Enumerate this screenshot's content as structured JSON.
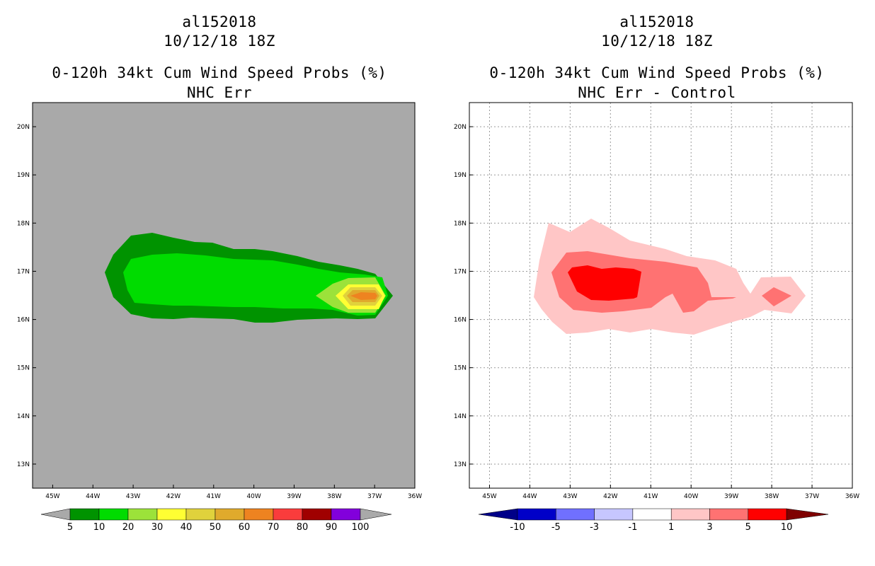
{
  "panels": [
    {
      "title_line1": "al152018",
      "title_line2": "10/12/18 18Z",
      "title_line3": "0-120h 34kt Cum Wind Speed Probs (%)",
      "title_line4": "NHC Err",
      "background": "#a9a9a9"
    },
    {
      "title_line1": "al152018",
      "title_line2": "10/12/18 18Z",
      "title_line3": "0-120h 34kt Cum Wind Speed Probs (%)",
      "title_line4": "NHC Err - Control",
      "background": "#ffffff"
    }
  ],
  "chart_data": {
    "type": "heatmap",
    "x_ticks": [
      "45W",
      "44W",
      "43W",
      "42W",
      "41W",
      "40W",
      "39W",
      "38W",
      "37W",
      "36W"
    ],
    "y_ticks": [
      "20N",
      "19N",
      "18N",
      "17N",
      "16N",
      "15N",
      "14N",
      "13N"
    ],
    "xlim": [
      -45.5,
      -36.0
    ],
    "ylim": [
      12.5,
      20.5
    ],
    "left_colorbar": {
      "labels": [
        "5",
        "10",
        "20",
        "30",
        "40",
        "50",
        "60",
        "70",
        "80",
        "90",
        "100"
      ],
      "colors": [
        "#009300",
        "#00dc00",
        "#9ce23a",
        "#ffff33",
        "#e0d23c",
        "#e0aa2c",
        "#ee8320",
        "#fa3c3c",
        "#a00000",
        "#8200dc"
      ]
    },
    "right_colorbar": {
      "labels": [
        "-10",
        "-5",
        "-3",
        "-1",
        "1",
        "3",
        "5",
        "10"
      ],
      "colors": [
        "#0000c8",
        "#7070ff",
        "#c6c6ff",
        "#ffffff",
        "#ffc6c6",
        "#ff7272",
        "#ff0000"
      ],
      "low_color": "#000088",
      "high_color": "#7f0000"
    }
  }
}
